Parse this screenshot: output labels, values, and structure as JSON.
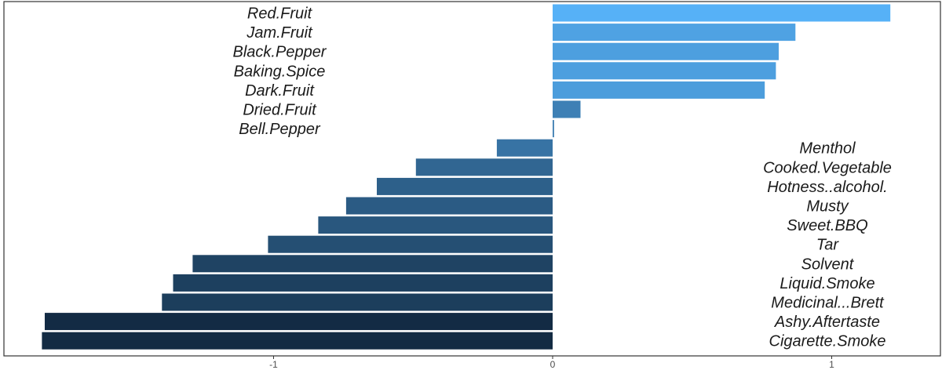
{
  "chart_data": {
    "type": "bar",
    "orientation": "horizontal",
    "title": "",
    "xlabel": "",
    "ylabel": "",
    "xlim": [
      -1.83,
      1.4
    ],
    "x_ticks": [
      -1,
      0,
      1
    ],
    "x_tick_labels": [
      "-1",
      "0",
      "1"
    ],
    "grid": false,
    "legend": "none",
    "color_scale": {
      "low": "#132b43",
      "high": "#56b1f7"
    },
    "categories": [
      "Red.Fruit",
      "Jam.Fruit",
      "Black.Pepper",
      "Baking.Spice",
      "Dark.Fruit",
      "Dried.Fruit",
      "Bell.Pepper",
      "Menthol",
      "Cooked.Vegetable",
      "Hotness..alcohol.",
      "Musty",
      "Sweet.BBQ",
      "Tar",
      "Solvent",
      "Liquid.Smoke",
      "Medicinal...Brett",
      "Ashy.Aftertaste",
      "Cigarette.Smoke"
    ],
    "values": [
      1.21,
      0.87,
      0.81,
      0.8,
      0.76,
      0.1,
      0.005,
      -0.2,
      -0.49,
      -0.63,
      -0.74,
      -0.84,
      -1.02,
      -1.29,
      -1.36,
      -1.4,
      -1.82,
      -1.83
    ]
  }
}
